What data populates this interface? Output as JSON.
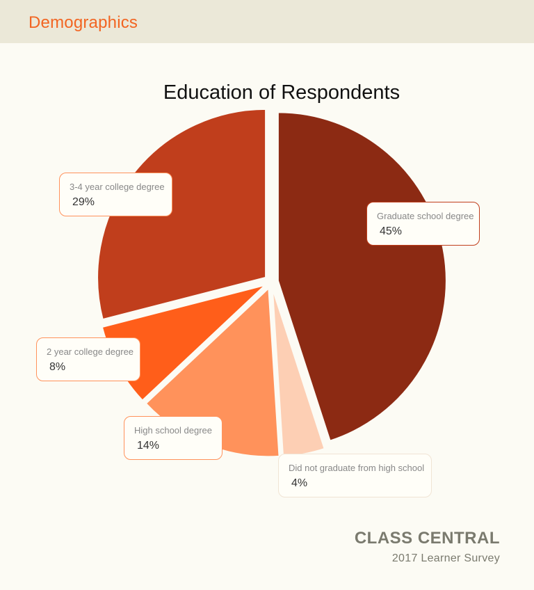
{
  "header": {
    "title": "Demographics"
  },
  "chart_data": {
    "type": "pie",
    "title": "Education of Respondents",
    "slices": [
      {
        "label": "Graduate school degree",
        "value": 45,
        "display": "45%",
        "color": "#8c2a13"
      },
      {
        "label": "Did not graduate from high school",
        "value": 4,
        "display": "4%",
        "color": "#fdcfb4"
      },
      {
        "label": "High school degree",
        "value": 14,
        "display": "14%",
        "color": "#ff925b"
      },
      {
        "label": "2 year college degree",
        "value": 8,
        "display": "8%",
        "color": "#ff5e1a"
      },
      {
        "label": "3-4 year college degree",
        "value": 29,
        "display": "29%",
        "color": "#c03e1c"
      }
    ]
  },
  "branding": {
    "name": "CLASS CENTRAL",
    "subtitle": "2017 Learner Survey"
  }
}
